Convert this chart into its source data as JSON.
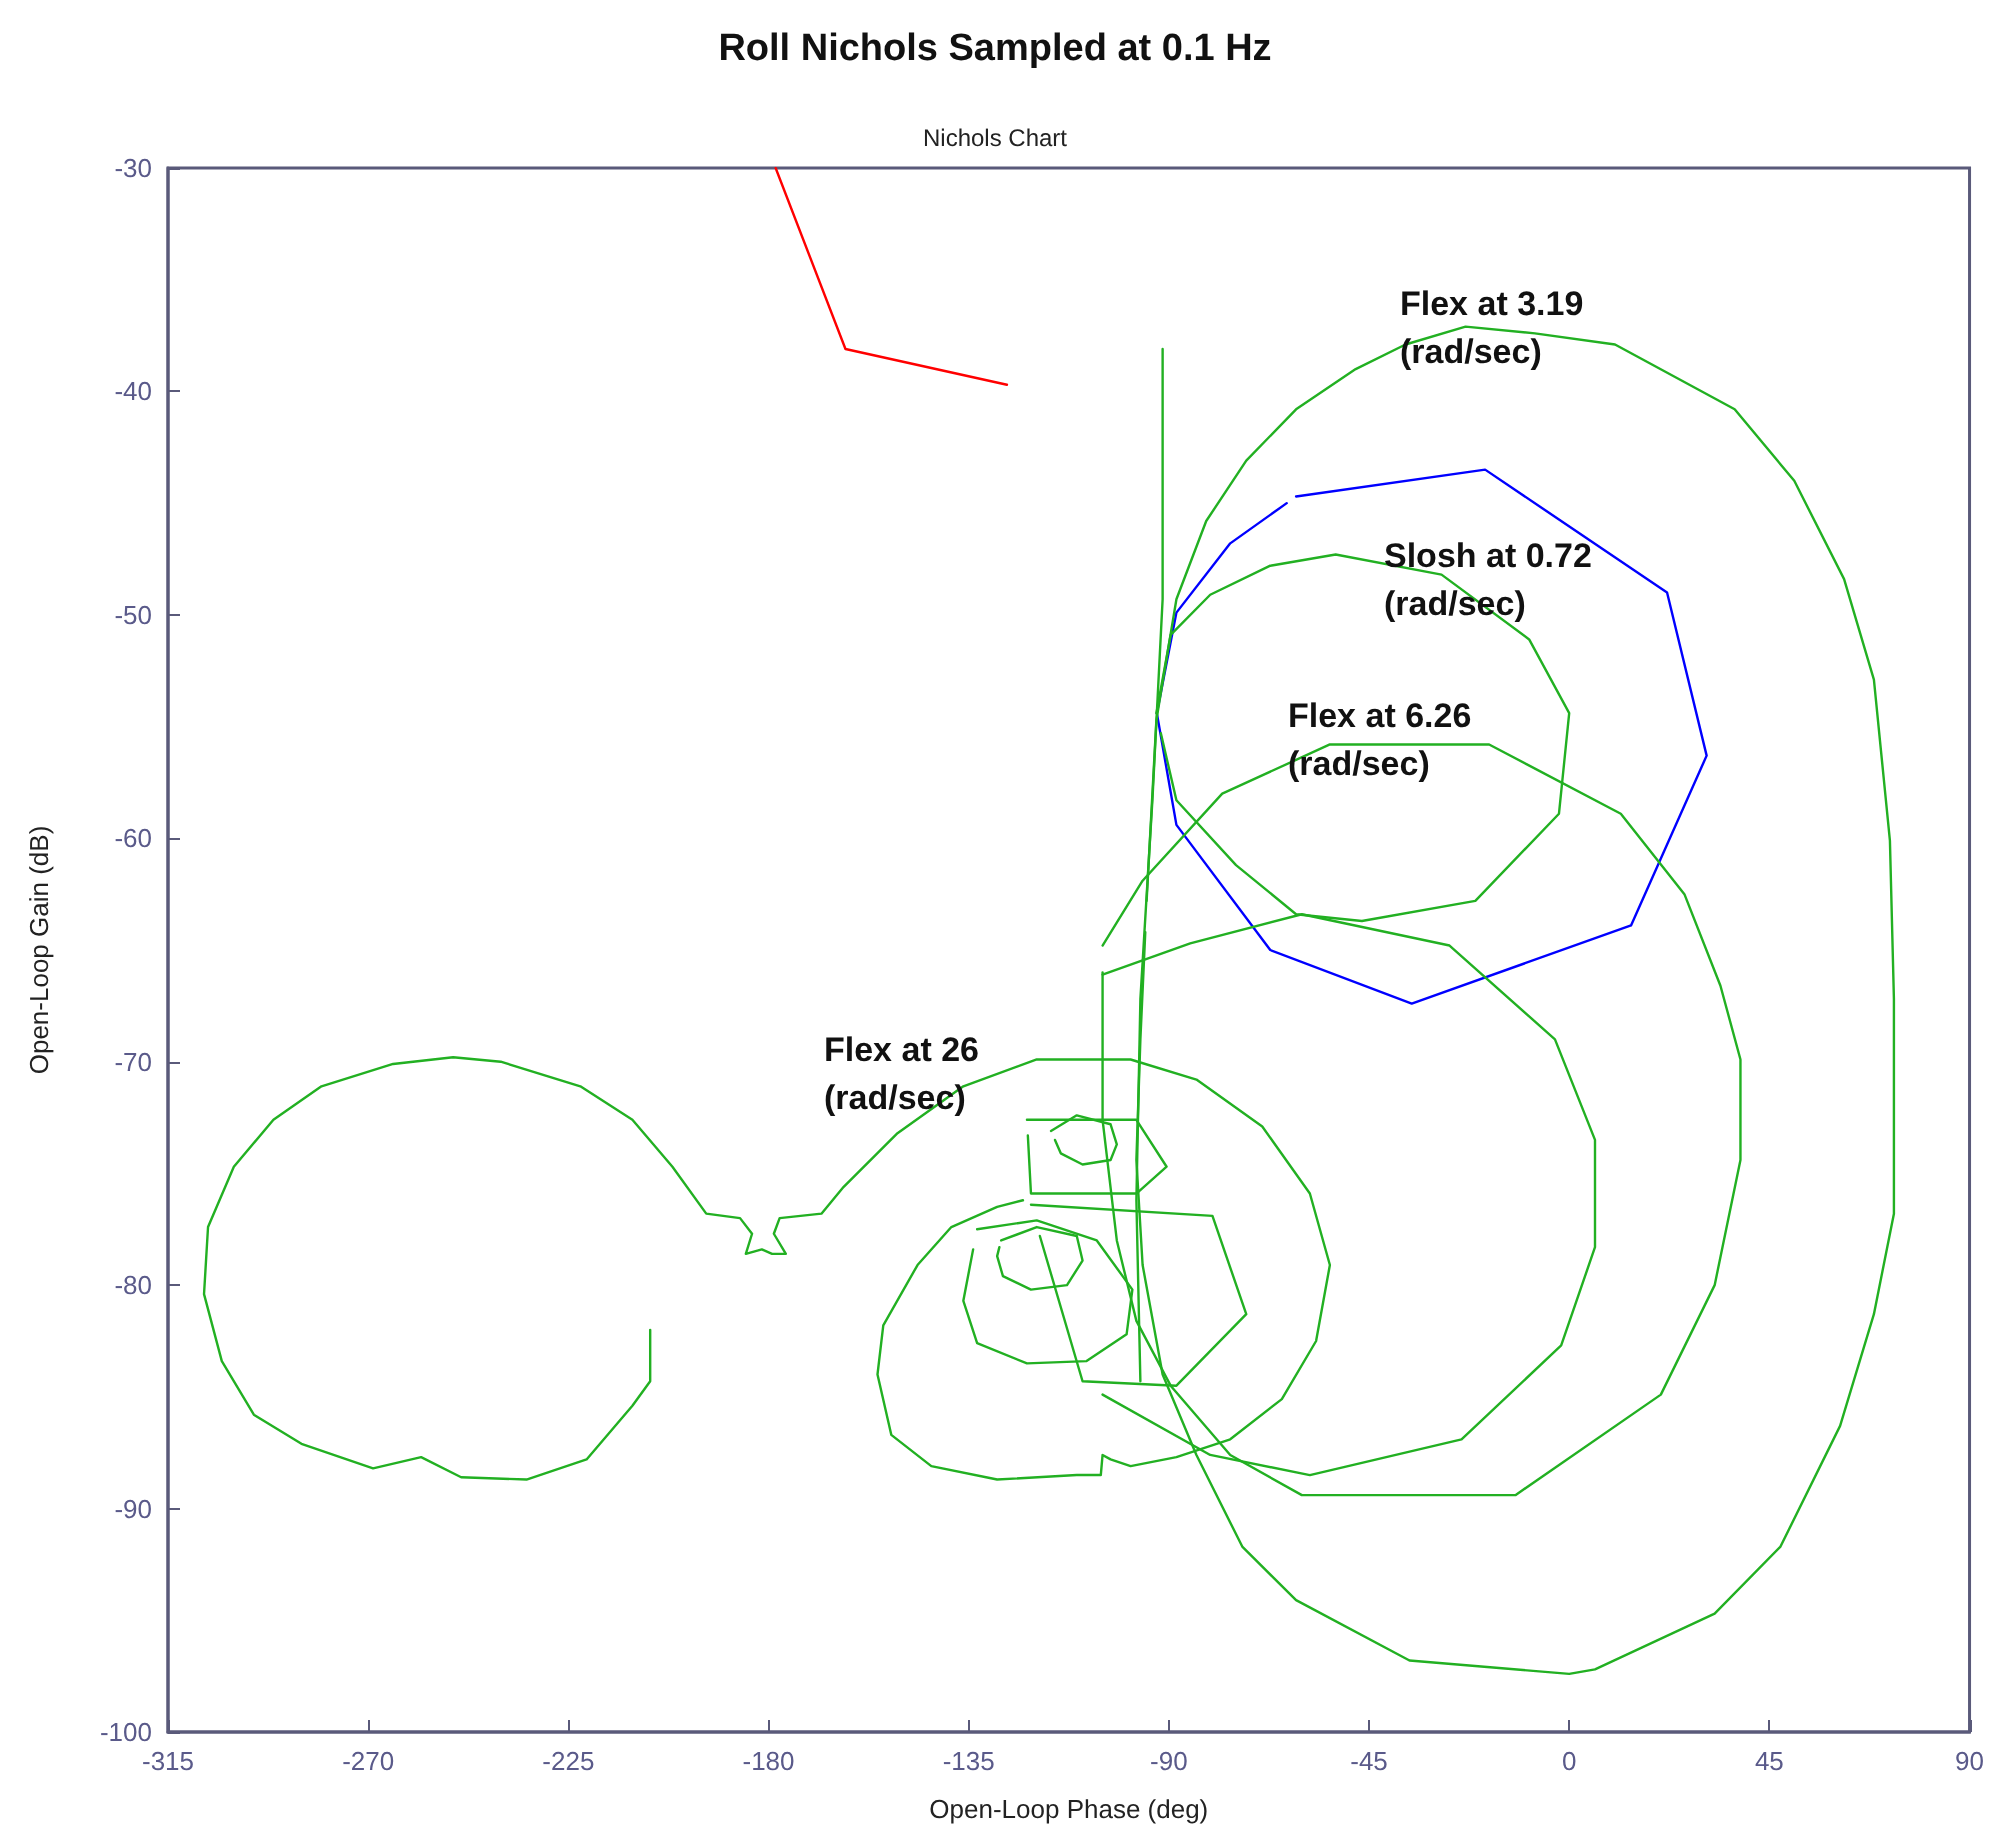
{
  "chart_data": {
    "type": "line",
    "title": "Roll Nichols Sampled at 0.1 Hz",
    "subtitle": "Nichols Chart",
    "xlabel": "Open-Loop Phase (deg)",
    "ylabel": "Open-Loop Gain (dB)",
    "xlim": [
      -315,
      90
    ],
    "xticks": [
      -315,
      -270,
      -225,
      -180,
      -135,
      -90,
      -45,
      0,
      45,
      90
    ],
    "ylim": [
      -100,
      -30
    ],
    "yticks": [
      -100,
      -90,
      -80,
      -70,
      -60,
      -50,
      -40,
      -30
    ],
    "grid": false,
    "marker": "none",
    "series": [
      {
        "color": "#ff0000",
        "x": [
          -178.4,
          -162.7,
          -126.4
        ],
        "values": [
          -30,
          -38.1,
          -39.7
        ]
      },
      {
        "color": "#0000ff",
        "x": [
          -61.4,
          -18.9,
          22.0,
          30.9,
          13.9,
          -35.4,
          -67.2,
          -88.3,
          -92.7,
          -88.3,
          -76.2,
          -63.5
        ],
        "values": [
          -44.7,
          -43.5,
          -49.0,
          -56.3,
          -63.9,
          -67.4,
          -65.0,
          -59.4,
          -54.4,
          -49.9,
          -46.8,
          -45.0
        ]
      },
      {
        "color": "#22b022",
        "x": [
          -206.6,
          -206.6,
          -210.6,
          -220.9,
          -234.4,
          -249.1,
          -258.1,
          -268.9,
          -285.0,
          -295.7,
          -302.9,
          -306.9,
          -306.0,
          -300.2,
          -291.3,
          -280.5,
          -264.4,
          -250.9,
          -240.2,
          -222.3,
          -210.6,
          -201.6,
          -194.0,
          -186.4,
          -183.7,
          -185.1,
          -181.5,
          -179.2,
          -176.1,
          -178.8,
          -177.5,
          -168.1,
          -163.1,
          -151.0,
          -136.2,
          -119.7,
          -98.6,
          -83.8,
          -69.0,
          -58.3,
          -53.8,
          -56.9,
          -64.6,
          -76.2,
          -88.3,
          -98.6,
          -103.1,
          -104.9,
          -105.3,
          -110.7,
          -128.6,
          -143.4,
          -152.4,
          -155.5,
          -154.2,
          -146.5,
          -138.9,
          -128.6,
          -122.8
        ],
        "values": [
          -82.0,
          -84.3,
          -85.4,
          -87.8,
          -88.7,
          -88.6,
          -87.7,
          -88.2,
          -87.1,
          -85.8,
          -83.4,
          -80.4,
          -77.4,
          -74.7,
          -72.6,
          -71.1,
          -70.1,
          -69.8,
          -70.0,
          -71.1,
          -72.6,
          -74.7,
          -76.8,
          -77.0,
          -77.7,
          -78.6,
          -78.4,
          -78.6,
          -78.6,
          -77.7,
          -77.0,
          -76.8,
          -75.6,
          -73.2,
          -71.1,
          -69.9,
          -69.9,
          -70.8,
          -72.9,
          -75.9,
          -79.1,
          -82.5,
          -85.1,
          -86.9,
          -87.7,
          -88.1,
          -87.8,
          -87.6,
          -88.5,
          -88.5,
          -88.7,
          -88.1,
          -86.7,
          -84.0,
          -81.8,
          -79.1,
          -77.4,
          -76.5,
          -76.2
        ]
      },
      {
        "color": "#22b022",
        "x": [
          -127.7,
          -119.7,
          -110.7,
          -109.4,
          -112.9,
          -121.0,
          -127.3,
          -128.6,
          -128.1
        ],
        "values": [
          -78.0,
          -77.4,
          -77.8,
          -78.9,
          -80.0,
          -80.2,
          -79.6,
          -78.7,
          -78.3
        ]
      },
      {
        "color": "#22b022",
        "x": [
          -116.5,
          -110.7,
          -103.1,
          -101.7,
          -103.1,
          -109.4,
          -114.3,
          -115.6
        ],
        "values": [
          -73.1,
          -72.4,
          -72.8,
          -73.7,
          -74.4,
          -74.6,
          -74.1,
          -73.5
        ]
      },
      {
        "color": "#22b022",
        "x": [
          -133.1,
          -119.7,
          -106.2,
          -98.2,
          -99.5,
          -108.5,
          -121.9,
          -133.1,
          -136.2,
          -134.0
        ],
        "values": [
          -77.5,
          -77.1,
          -78.0,
          -80.2,
          -82.2,
          -83.4,
          -83.5,
          -82.6,
          -80.7,
          -78.4
        ]
      },
      {
        "color": "#22b022",
        "x": [
          -121.0,
          -80.2,
          -72.6,
          -88.3,
          -109.4,
          -119.0
        ],
        "values": [
          -76.4,
          -76.9,
          -81.3,
          -84.5,
          -84.3,
          -77.8
        ]
      },
      {
        "color": "#22b022",
        "x": [
          -121.9,
          -97.3,
          -90.5,
          -97.3,
          -121.0,
          -121.7
        ],
        "values": [
          -72.6,
          -72.6,
          -74.7,
          -75.9,
          -75.9,
          -73.3
        ]
      },
      {
        "color": "#22b022",
        "x": [
          -91.4,
          -91.4,
          -93.7,
          -96.4,
          -97.3,
          -96.4
        ],
        "values": [
          -38.1,
          -49.3,
          -58.3,
          -67.2,
          -76.2,
          -84.3
        ]
      },
      {
        "color": "#22b022",
        "x": [
          -95.0,
          -92.8,
          -88.3,
          -81.6,
          -72.6,
          -61.4,
          -48.0,
          -36.8,
          -23.3,
          -7.7,
          10.3,
          37.2,
          50.6,
          61.8,
          68.5,
          72.1,
          73.0,
          73.0,
          68.5,
          60.9,
          47.5,
          32.7,
          5.8,
          0.0,
          -35.9,
          -61.4,
          -73.5,
          -83.8,
          -91.4,
          -95.9,
          -97.3,
          -96.4,
          -95.3
        ],
        "values": [
          -62.8,
          -54.7,
          -49.3,
          -45.8,
          -43.1,
          -40.8,
          -39.0,
          -37.9,
          -37.1,
          -37.4,
          -37.9,
          -40.8,
          -44.0,
          -48.4,
          -52.9,
          -60.1,
          -67.2,
          -76.8,
          -81.3,
          -86.3,
          -91.7,
          -94.7,
          -97.2,
          -97.4,
          -96.8,
          -94.1,
          -91.7,
          -87.6,
          -84.0,
          -79.1,
          -74.4,
          -69.0,
          -64.2
        ]
      },
      {
        "color": "#22b022",
        "x": [
          -104.9,
          -95.9,
          -78.0,
          -53.8,
          -18.0,
          11.6,
          25.9,
          34.0,
          38.5,
          38.5,
          32.7,
          20.6,
          -12.1,
          -60.1,
          -76.2,
          -89.6,
          -97.3,
          -101.7,
          -104.9,
          -104.9
        ],
        "values": [
          -64.8,
          -61.9,
          -58.0,
          -55.8,
          -55.8,
          -58.9,
          -62.5,
          -66.6,
          -69.9,
          -74.4,
          -80.0,
          -84.9,
          -89.4,
          -89.4,
          -87.6,
          -84.5,
          -81.6,
          -78.0,
          -72.6,
          -66.0
        ]
      },
      {
        "color": "#22b022",
        "x": [
          -92.8,
          -89.6,
          -80.7,
          -67.2,
          -52.5,
          -28.7,
          -9.0,
          0.0,
          -2.3,
          -21.1,
          -46.6,
          -61.4,
          -74.9,
          -88.3,
          -91.8
        ],
        "values": [
          -54.4,
          -50.9,
          -49.1,
          -47.8,
          -47.3,
          -48.2,
          -51.1,
          -54.4,
          -58.9,
          -62.8,
          -63.7,
          -63.4,
          -61.2,
          -58.3,
          -55.3
        ]
      },
      {
        "color": "#22b022",
        "x": [
          -104.9,
          -85.2,
          -60.1,
          -26.9,
          -3.2,
          5.8,
          5.8,
          -1.8,
          -24.2,
          -58.3,
          -80.7,
          -104.9
        ],
        "values": [
          -66.1,
          -64.7,
          -63.4,
          -64.8,
          -69.0,
          -73.5,
          -78.3,
          -82.7,
          -86.9,
          -88.5,
          -87.6,
          -84.9
        ]
      }
    ],
    "annotations": [
      "Flex at 3.19\n(rad/sec)",
      "Slosh at 0.72\n(rad/sec)",
      "Flex at 6.26\n(rad/sec)",
      "Flex at 26\n(rad/sec)"
    ]
  }
}
